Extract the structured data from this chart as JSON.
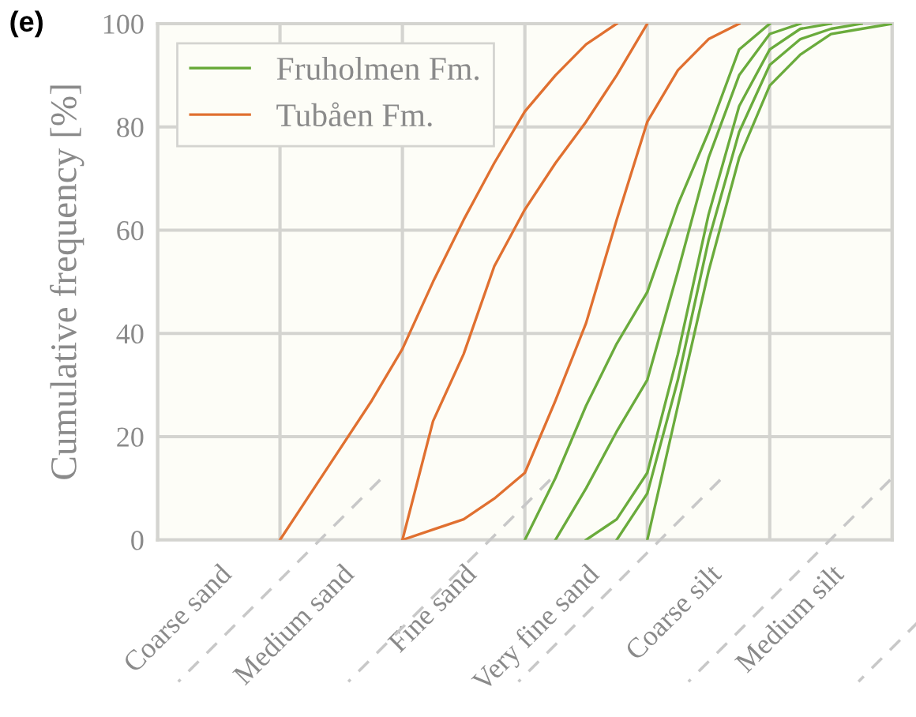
{
  "chart_data": {
    "type": "line",
    "ylabel": "Cumulative frequency [%]",
    "annotations": [
      "(e)"
    ],
    "categories": [
      null,
      null,
      "Coarse sand",
      null,
      null,
      null,
      "Medium sand",
      null,
      null,
      null,
      "Fine sand",
      null,
      null,
      null,
      "Very fine sand",
      null,
      null,
      null,
      "Coarse silt",
      null,
      null,
      null,
      "Medium silt",
      null,
      null
    ],
    "ylim": [
      0,
      100
    ],
    "yticks": [
      0,
      20,
      40,
      60,
      80,
      100
    ],
    "grid": true,
    "legend": "top left",
    "marker": "none",
    "line_style": "solid",
    "series": [
      {
        "name": "Fruholmen Fm.",
        "color": "#6aab3c",
        "values": [
          null,
          null,
          null,
          null,
          null,
          null,
          null,
          null,
          null,
          null,
          null,
          null,
          0,
          12,
          26,
          38,
          48,
          65,
          79,
          95,
          100,
          null,
          null,
          null,
          null
        ]
      },
      {
        "color": "#6aab3c",
        "values": [
          null,
          null,
          null,
          null,
          null,
          null,
          null,
          null,
          null,
          null,
          null,
          null,
          null,
          0,
          10,
          21,
          31,
          52,
          74,
          90,
          98,
          100,
          null,
          null,
          null
        ]
      },
      {
        "color": "#6aab3c",
        "values": [
          null,
          null,
          null,
          null,
          null,
          null,
          null,
          null,
          null,
          null,
          null,
          null,
          null,
          null,
          0,
          4,
          13,
          36,
          63,
          84,
          95,
          99,
          100,
          null,
          null
        ]
      },
      {
        "color": "#6aab3c",
        "values": [
          null,
          null,
          null,
          null,
          null,
          null,
          null,
          null,
          null,
          null,
          null,
          null,
          null,
          null,
          null,
          0,
          9,
          31,
          58,
          79,
          92,
          97,
          99,
          100,
          null
        ]
      },
      {
        "color": "#6aab3c",
        "values": [
          null,
          null,
          null,
          null,
          null,
          null,
          null,
          null,
          null,
          null,
          null,
          null,
          null,
          null,
          null,
          null,
          0,
          26,
          52,
          74,
          88,
          94,
          98,
          99,
          100
        ]
      },
      {
        "name": "Tubåen Fm.",
        "color": "#e07030",
        "values": [
          null,
          null,
          null,
          null,
          0,
          9,
          18,
          27,
          37,
          50,
          62,
          73,
          83,
          90,
          96,
          100,
          null,
          null,
          null,
          null,
          null,
          null,
          null,
          null,
          null
        ]
      },
      {
        "color": "#e07030",
        "values": [
          null,
          null,
          null,
          null,
          null,
          null,
          null,
          null,
          0,
          23,
          36,
          53,
          64,
          73,
          81,
          90,
          100,
          null,
          null,
          null,
          null,
          null,
          null,
          null,
          null
        ]
      },
      {
        "color": "#e07030",
        "values": [
          null,
          null,
          null,
          null,
          null,
          null,
          null,
          null,
          0,
          2,
          4,
          8,
          13,
          27,
          42,
          62,
          81,
          91,
          97,
          100,
          null,
          null,
          null,
          null,
          null
        ]
      }
    ]
  }
}
